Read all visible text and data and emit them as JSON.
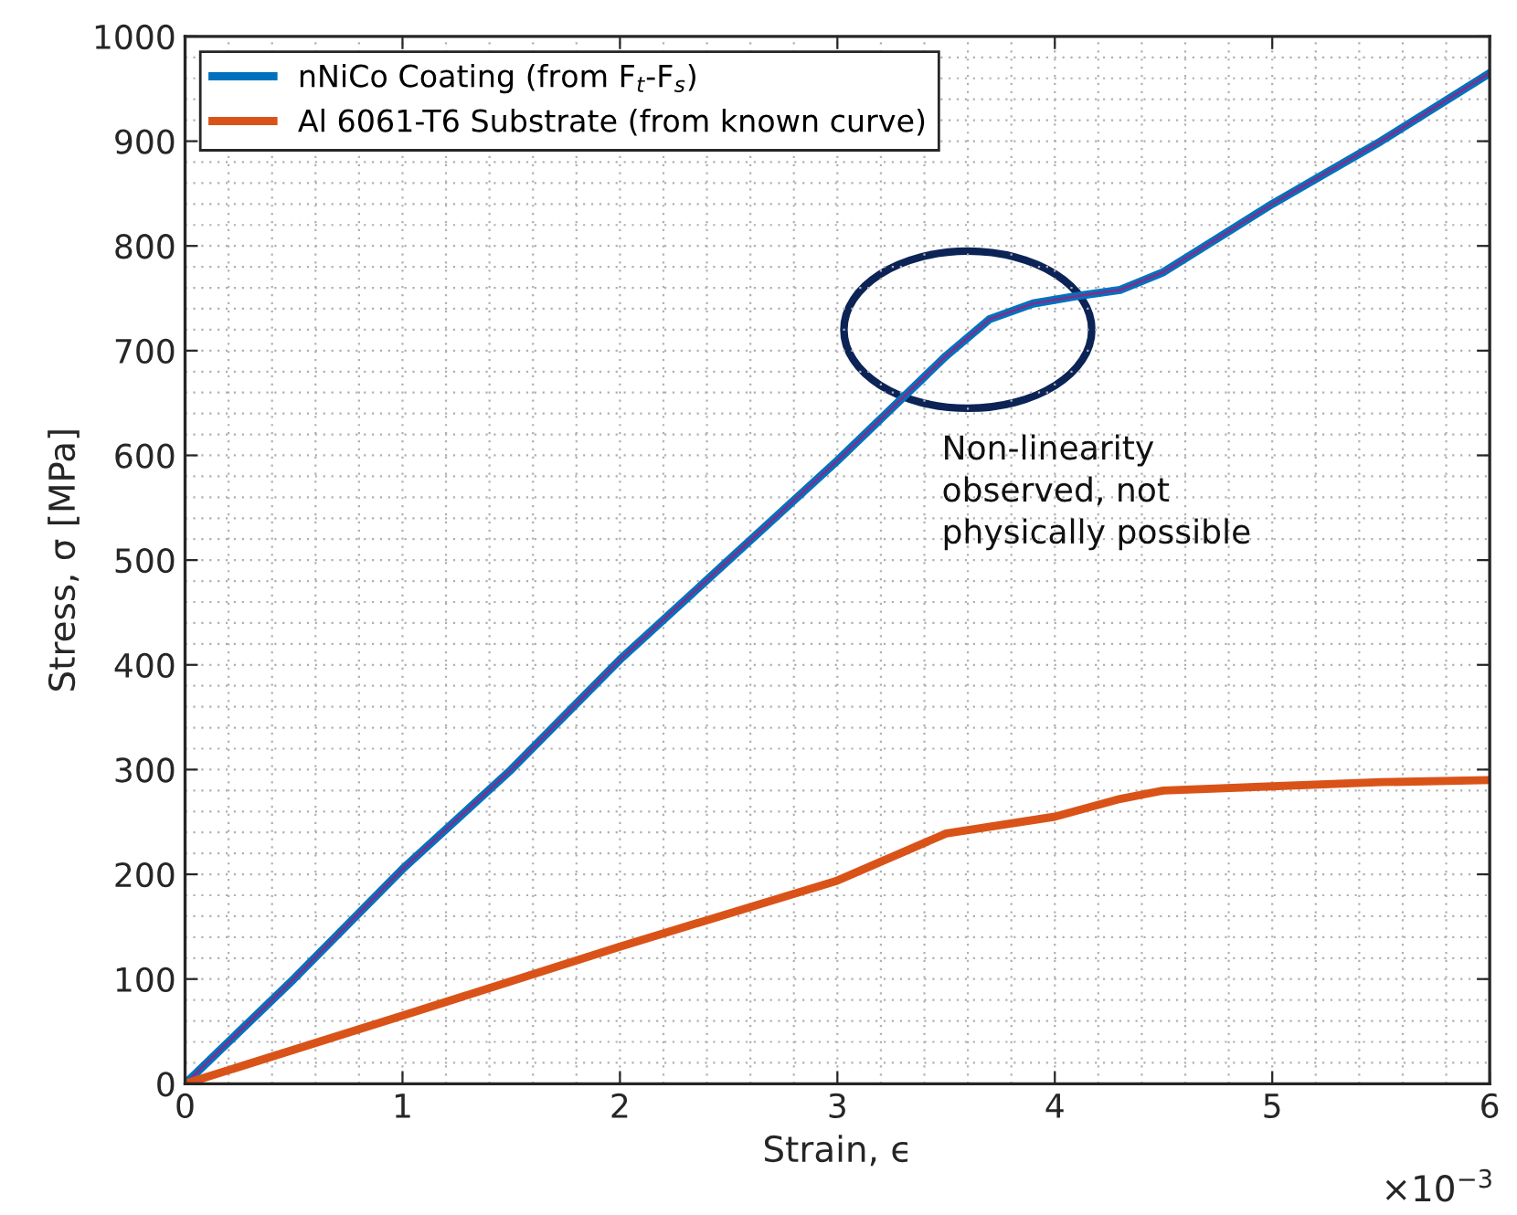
{
  "chart_data": {
    "type": "line",
    "xlabel": "Strain, ϵ",
    "ylabel": "Stress, σ [MPa]",
    "xlim": [
      0,
      6
    ],
    "xticks": [
      0,
      1,
      2,
      3,
      4,
      5,
      6
    ],
    "ylim": [
      0,
      1000
    ],
    "yticks": [
      0,
      100,
      200,
      300,
      400,
      500,
      600,
      700,
      800,
      900,
      1000
    ],
    "grid": true,
    "legend": "top left",
    "line_style": "solid",
    "marker": "none",
    "series": [
      {
        "name": "nNiCo Coating (from F$_{t}$-F$_{s}$)",
        "color": "#0072bd",
        "x": [
          0,
          0.2,
          0.5,
          1,
          1.5,
          2,
          2.5,
          3,
          3.3,
          3.5,
          3.7,
          3.9,
          4.1,
          4.3,
          4.5,
          5,
          5.5,
          6
        ],
        "values": [
          0,
          40,
          100,
          205,
          300,
          405,
          500,
          595,
          655,
          695,
          730,
          745,
          752,
          758,
          775,
          840,
          900,
          965
        ]
      },
      {
        "color": "#7e2f8e",
        "x": [
          0,
          0.2,
          0.5,
          1,
          1.5,
          2,
          2.5,
          3,
          3.3,
          3.5,
          3.7,
          3.9,
          4.1,
          4.3,
          4.5,
          5,
          5.5,
          6
        ],
        "values": [
          0,
          40,
          100,
          205,
          300,
          405,
          500,
          595,
          655,
          695,
          730,
          745,
          752,
          758,
          775,
          840,
          900,
          965
        ]
      },
      {
        "name": "Al 6061-T6 Substrate (from known curve)",
        "color": "#d95319",
        "x": [
          0,
          1,
          2,
          3,
          3.5,
          4,
          4.3,
          4.5,
          5,
          5.5,
          6
        ],
        "values": [
          0,
          65,
          131,
          194,
          239,
          255,
          272,
          280,
          284,
          288,
          290
        ]
      }
    ],
    "annotations": [
      "Non-linearity\nobserved, not\nphysically possible",
      "×10$^{−3}$"
    ]
  }
}
